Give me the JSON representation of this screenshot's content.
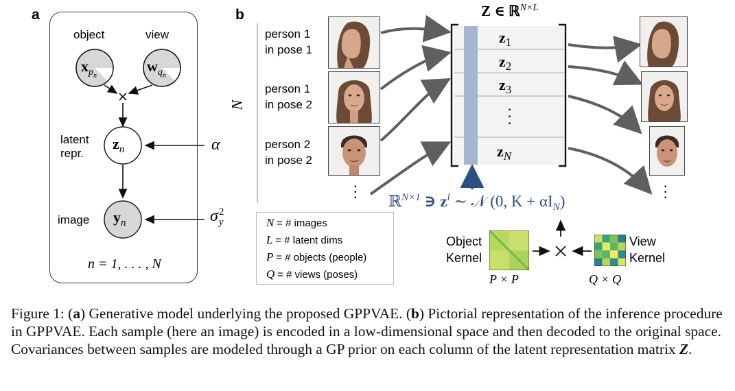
{
  "panel_a": {
    "letter": "a",
    "object_label": "object",
    "view_label": "view",
    "node_x": "x",
    "node_x_sub": "p",
    "node_x_subsub": "n",
    "node_w": "w",
    "node_w_sub": "q",
    "node_w_subsub": "n",
    "latent_label_1": "latent",
    "latent_label_2": "repr.",
    "node_z": "z",
    "node_z_sub": "n",
    "alpha": "α",
    "image_label": "image",
    "node_y": "y",
    "node_y_sub": "n",
    "sigma": "σ",
    "sigma_sup": "2",
    "sigma_sub": "y",
    "plate": "n = 1, . . . , N"
  },
  "panel_b": {
    "letter": "b",
    "N_label": "N",
    "inputs": [
      {
        "line1": "person 1",
        "line2": "in pose 1"
      },
      {
        "line1": "person 1",
        "line2": "in pose 2"
      },
      {
        "line1": "person 2",
        "line2": "in pose 2"
      }
    ],
    "matrix_title": "Z ∈ ℝ",
    "matrix_title_sup": "N×L",
    "rows": [
      {
        "sym": "z",
        "sub": "1"
      },
      {
        "sym": "z",
        "sub": "2"
      },
      {
        "sym": "z",
        "sub": "3"
      },
      {
        "sym": "z",
        "sub": "N"
      }
    ],
    "prior_eq_1": "ℝ",
    "prior_eq_sup": "N×1",
    "prior_eq_2": "∋ z",
    "prior_eq_sup2": "l",
    "prior_eq_3": "∼ 𝒩 (0, K + αI",
    "prior_eq_sub": "N",
    "prior_eq_4": ")",
    "legend": [
      {
        "sym": "N",
        "desc": "= # images"
      },
      {
        "sym": "L",
        "desc": "= # latent dims"
      },
      {
        "sym": "P",
        "desc": "= # objects (people)"
      },
      {
        "sym": "Q",
        "desc": "= # views (poses)"
      }
    ],
    "object_kernel_1": "Object",
    "object_kernel_2": "Kernel",
    "object_kernel_dim": "P × P",
    "view_kernel_1": "View",
    "view_kernel_2": "Kernel",
    "view_kernel_dim": "Q × Q",
    "times": "×",
    "colors": {
      "column": "#a4b7cc",
      "arrow": "#5f5f5f",
      "prior": "#2e4f83",
      "node_fill": "#d7d7d7"
    }
  },
  "caption": {
    "prefix": "Figure 1: (",
    "a": "a",
    "mid1": ") Generative model underlying the proposed GPPVAE. (",
    "b": "b",
    "rest": ") Pictorial representation of the inference procedure in GPPVAE. Each sample (here an image) is encoded in a low-dimensional space and then decoded to the original space. Covariances between samples are modeled through a GP prior on each column of the latent representation matrix ",
    "Z": "Z",
    "end": "."
  }
}
